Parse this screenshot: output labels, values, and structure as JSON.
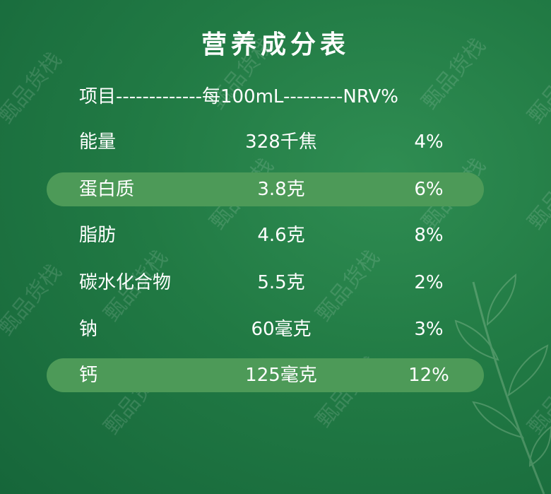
{
  "title": "营养成分表",
  "header": "项目-------------每100mL---------NRV%",
  "rows": [
    {
      "item": "能量",
      "per100": "328千焦",
      "nrv": "4%",
      "highlight": false
    },
    {
      "item": "蛋白质",
      "per100": "3.8克",
      "nrv": "6%",
      "highlight": true
    },
    {
      "item": "脂肪",
      "per100": "4.6克",
      "nrv": "8%",
      "highlight": false
    },
    {
      "item": "碳水化合物",
      "per100": "5.5克",
      "nrv": "2%",
      "highlight": false
    },
    {
      "item": "钠",
      "per100": "60毫克",
      "nrv": "3%",
      "highlight": false
    },
    {
      "item": "钙",
      "per100": "125毫克",
      "nrv": "12%",
      "highlight": true
    }
  ],
  "watermark": "甄品货栈",
  "colors": {
    "background": "#217a44",
    "highlight": "#4d9a58",
    "text": "#ffffff"
  }
}
